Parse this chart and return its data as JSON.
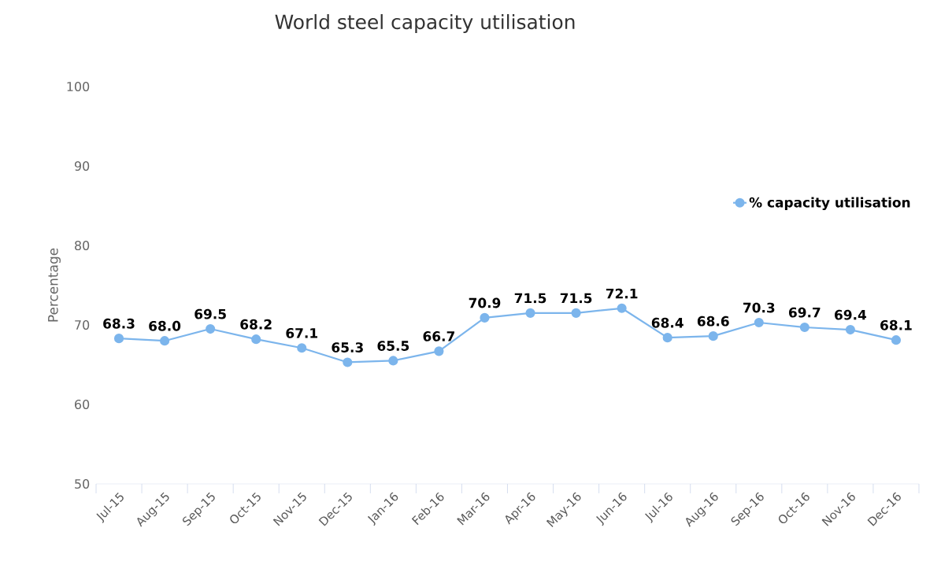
{
  "chart_data": {
    "type": "line",
    "title": "World steel capacity utilisation",
    "ylabel": "Percentage",
    "categories": [
      "Jul-15",
      "Aug-15",
      "Sep-15",
      "Oct-15",
      "Nov-15",
      "Dec-15",
      "Jan-16",
      "Feb-16",
      "Mar-16",
      "Apr-16",
      "May-16",
      "Jun-16",
      "Jul-16",
      "Aug-16",
      "Sep-16",
      "Oct-16",
      "Nov-16",
      "Dec-16"
    ],
    "series": [
      {
        "name": "% capacity utilisation",
        "color": "#7cb5ec",
        "values": [
          68.3,
          68.0,
          69.5,
          68.2,
          67.1,
          65.3,
          65.5,
          66.7,
          70.9,
          71.5,
          71.5,
          72.1,
          68.4,
          68.6,
          70.3,
          69.7,
          69.4,
          68.1
        ],
        "value_labels": [
          "68.3",
          "68.0",
          "69.5",
          "68.2",
          "67.1",
          "65.3",
          "65.5",
          "66.7",
          "70.9",
          "71.5",
          "71.5",
          "72.1",
          "68.4",
          "68.6",
          "70.3",
          "69.7",
          "69.4",
          "68.1"
        ]
      }
    ],
    "ylim": [
      50,
      100
    ],
    "yticks": [
      50,
      60,
      70,
      80,
      90,
      100
    ],
    "marker": "circle",
    "line_style": "solid",
    "legend": "top right",
    "grid": false
  }
}
